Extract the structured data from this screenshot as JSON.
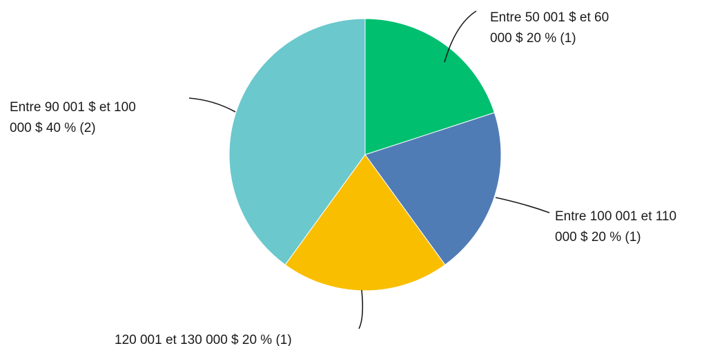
{
  "chart_data": {
    "type": "pie",
    "start_angle_deg": 0,
    "direction": "clockwise",
    "slices": [
      {
        "label_lines": [
          "Entre 50 001 $ et 60",
          "000 $ 20 % (1)"
        ],
        "value": 20,
        "count": 1,
        "color": "#00bf6f"
      },
      {
        "label_lines": [
          "Entre 100 001 et 110",
          "000 $ 20 % (1)"
        ],
        "value": 20,
        "count": 1,
        "color": "#507cb6"
      },
      {
        "label_lines": [
          "120 001 et 130 000 $ 20 % (1)"
        ],
        "value": 20,
        "count": 1,
        "color": "#f9be00"
      },
      {
        "label_lines": [
          "Entre 90 001 $ et 100",
          "000 $ 40 % (2)"
        ],
        "value": 40,
        "count": 2,
        "color": "#6bc8cd"
      }
    ]
  }
}
